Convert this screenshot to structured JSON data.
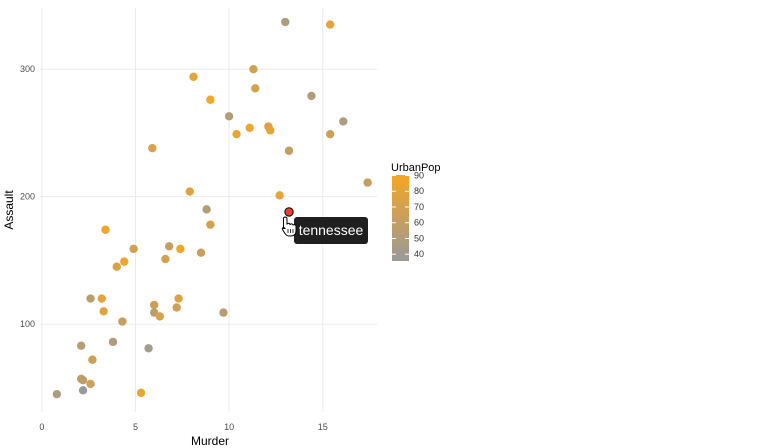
{
  "chart_data": {
    "type": "scatter",
    "xlabel": "Murder",
    "ylabel": "Assault",
    "xlim": [
      -0.1,
      17.9
    ],
    "ylim": [
      31,
      348
    ],
    "x_ticks": [
      0,
      5,
      10,
      15
    ],
    "y_ticks": [
      100,
      200,
      300
    ],
    "grid": true,
    "color_scale": {
      "variable": "UrbanPop",
      "min": 32,
      "max": 91,
      "low_color": "#999999",
      "high_color": "#f5a623",
      "ticks": [
        40,
        50,
        60,
        70,
        80,
        90
      ]
    },
    "legend_position": "right",
    "points": [
      {
        "x": 13.2,
        "y": 236,
        "urban": 58
      },
      {
        "x": 10.0,
        "y": 263,
        "urban": 48
      },
      {
        "x": 8.1,
        "y": 294,
        "urban": 80
      },
      {
        "x": 8.8,
        "y": 190,
        "urban": 50
      },
      {
        "x": 9.0,
        "y": 276,
        "urban": 91
      },
      {
        "x": 7.9,
        "y": 204,
        "urban": 78
      },
      {
        "x": 3.3,
        "y": 110,
        "urban": 77
      },
      {
        "x": 5.9,
        "y": 238,
        "urban": 72
      },
      {
        "x": 15.4,
        "y": 335,
        "urban": 80
      },
      {
        "x": 17.4,
        "y": 211,
        "urban": 60
      },
      {
        "x": 5.3,
        "y": 46,
        "urban": 83
      },
      {
        "x": 2.6,
        "y": 120,
        "urban": 54
      },
      {
        "x": 10.4,
        "y": 249,
        "urban": 83
      },
      {
        "x": 7.2,
        "y": 113,
        "urban": 65
      },
      {
        "x": 2.2,
        "y": 56,
        "urban": 57
      },
      {
        "x": 6.0,
        "y": 115,
        "urban": 66
      },
      {
        "x": 9.7,
        "y": 109,
        "urban": 52
      },
      {
        "x": 15.4,
        "y": 249,
        "urban": 66
      },
      {
        "x": 2.1,
        "y": 83,
        "urban": 51
      },
      {
        "x": 11.3,
        "y": 300,
        "urban": 67
      },
      {
        "x": 4.4,
        "y": 149,
        "urban": 85
      },
      {
        "x": 12.1,
        "y": 255,
        "urban": 74
      },
      {
        "x": 2.7,
        "y": 72,
        "urban": 66
      },
      {
        "x": 16.1,
        "y": 259,
        "urban": 44
      },
      {
        "x": 9.0,
        "y": 178,
        "urban": 70
      },
      {
        "x": 6.0,
        "y": 109,
        "urban": 53
      },
      {
        "x": 4.3,
        "y": 102,
        "urban": 62
      },
      {
        "x": 12.2,
        "y": 252,
        "urban": 81
      },
      {
        "x": 2.1,
        "y": 57,
        "urban": 56
      },
      {
        "x": 7.4,
        "y": 159,
        "urban": 89
      },
      {
        "x": 11.4,
        "y": 285,
        "urban": 70
      },
      {
        "x": 11.1,
        "y": 254,
        "urban": 86
      },
      {
        "x": 13.0,
        "y": 337,
        "urban": 45
      },
      {
        "x": 0.8,
        "y": 45,
        "urban": 44
      },
      {
        "x": 7.3,
        "y": 120,
        "urban": 75
      },
      {
        "x": 6.6,
        "y": 151,
        "urban": 68
      },
      {
        "x": 4.9,
        "y": 159,
        "urban": 67
      },
      {
        "x": 6.3,
        "y": 106,
        "urban": 72
      },
      {
        "x": 3.4,
        "y": 174,
        "urban": 87
      },
      {
        "x": 14.4,
        "y": 279,
        "urban": 48
      },
      {
        "x": 3.8,
        "y": 86,
        "urban": 45
      },
      {
        "x": 13.2,
        "y": 188,
        "urban": 59,
        "highlighted": true
      },
      {
        "x": 12.7,
        "y": 201,
        "urban": 80
      },
      {
        "x": 3.2,
        "y": 120,
        "urban": 80
      },
      {
        "x": 2.2,
        "y": 48,
        "urban": 32
      },
      {
        "x": 8.5,
        "y": 156,
        "urban": 63
      },
      {
        "x": 4.0,
        "y": 145,
        "urban": 73
      },
      {
        "x": 5.7,
        "y": 81,
        "urban": 39
      },
      {
        "x": 2.6,
        "y": 53,
        "urban": 66
      },
      {
        "x": 6.8,
        "y": 161,
        "urban": 60
      }
    ],
    "tooltip": {
      "label": "tennessee"
    }
  },
  "legend": {
    "title": "UrbanPop"
  }
}
